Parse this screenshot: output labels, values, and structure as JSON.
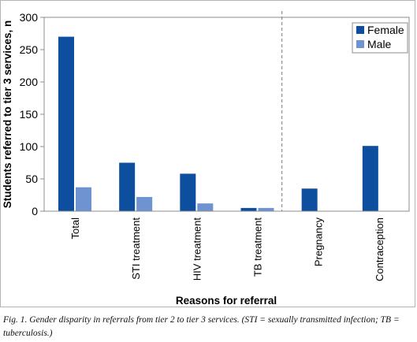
{
  "chart_data": {
    "type": "bar",
    "xlabel": "Reasons for referral",
    "ylabel": "Students referred to tier 3 services, n",
    "ylim": [
      0,
      300
    ],
    "yticks": [
      0,
      50,
      100,
      150,
      200,
      250,
      300
    ],
    "categories": [
      "Total",
      "STI treatment",
      "HIV treatment",
      "TB treatment",
      "Pregnancy",
      "Contraception"
    ],
    "series": [
      {
        "name": "Female",
        "color": "#0d4f9e",
        "values": [
          270,
          75,
          58,
          5,
          35,
          101
        ]
      },
      {
        "name": "Male",
        "color": "#6f93d0",
        "values": [
          37,
          22,
          12,
          5,
          null,
          null
        ]
      }
    ],
    "legend_position": "top-right",
    "separator_after_category": "TB treatment",
    "grid": false
  },
  "caption": "Fig. 1. Gender disparity in referrals from tier 2 to tier 3 services. (STI = sexually transmitted infection; TB = tuberculosis.)"
}
